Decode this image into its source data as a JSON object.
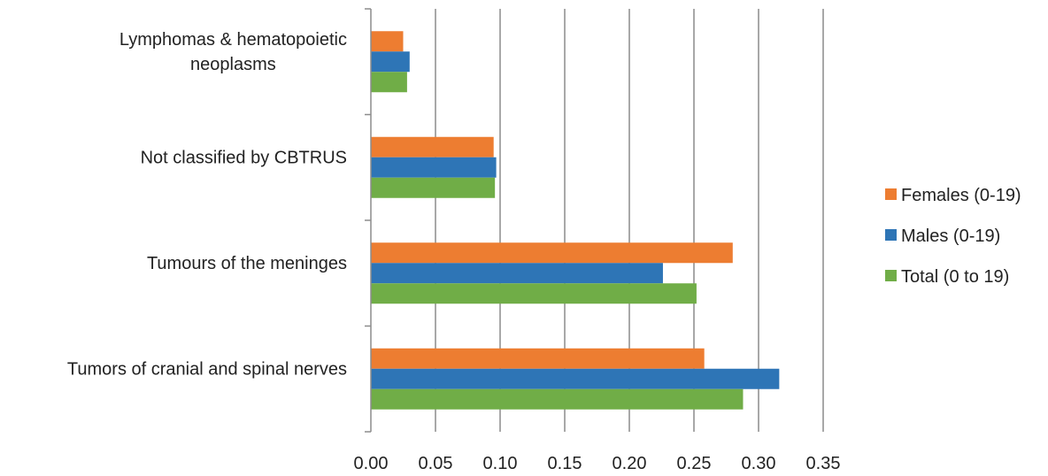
{
  "chart_data": {
    "type": "bar",
    "orientation": "horizontal",
    "categories": [
      "Lymphomas & hematopoietic neoplasms",
      "Not classified by CBTRUS",
      "Tumours of the meninges",
      "Tumors of cranial and spinal nerves"
    ],
    "category_lines": [
      [
        "Lymphomas & hematopoietic",
        "neoplasms"
      ],
      [
        "Not classified by CBTRUS"
      ],
      [
        "Tumours of the meninges"
      ],
      [
        "Tumors of cranial and spinal nerves"
      ]
    ],
    "series": [
      {
        "name": "Females (0-19)",
        "color": "#ED7D31",
        "values": [
          0.025,
          0.095,
          0.28,
          0.258
        ]
      },
      {
        "name": "Males (0-19)",
        "color": "#2E75B6",
        "values": [
          0.03,
          0.097,
          0.226,
          0.316
        ]
      },
      {
        "name": "Total (0 to 19)",
        "color": "#70AD47",
        "values": [
          0.028,
          0.096,
          0.252,
          0.288
        ]
      }
    ],
    "x_ticks": [
      "0.00",
      "0.05",
      "0.10",
      "0.15",
      "0.20",
      "0.25",
      "0.30",
      "0.35"
    ],
    "xlim": [
      0,
      0.35
    ],
    "grid": true,
    "legend_position": "right",
    "title": "",
    "xlabel": "",
    "ylabel": ""
  }
}
